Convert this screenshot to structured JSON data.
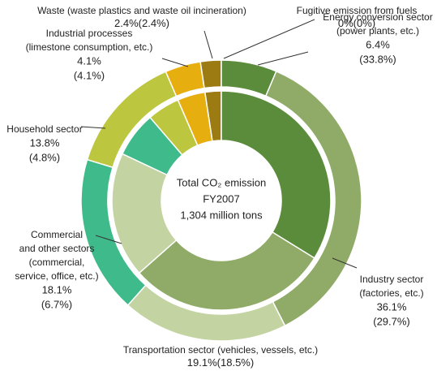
{
  "chart_data": {
    "type": "donut",
    "title": "Total CO₂ emission",
    "subtitle": "FY2007",
    "annotation": "1,304 million tons",
    "categories": [
      [
        "Energy conversion sector",
        "(power plants, etc.)"
      ],
      [
        "Industry sector",
        "(factories, etc.)"
      ],
      [
        "Transportation sector (vehicles, vessels, etc.)"
      ],
      [
        "Commercial",
        "and other sectors",
        "(commercial,",
        "service, office, etc.)"
      ],
      [
        "Household sector"
      ],
      [
        "Industrial processes",
        "(limestone consumption, etc.)"
      ],
      [
        "Waste (waste plastics and waste oil incineration)"
      ],
      [
        "Fugitive emission from fuels"
      ]
    ],
    "colors": [
      "#5b8c3b",
      "#8fab67",
      "#c4d3a2",
      "#3fba8b",
      "#bcc63f",
      "#e7ae10",
      "#9c7b12",
      "#6b5a10"
    ],
    "series": [
      {
        "values": [
          6.4,
          36.1,
          19.1,
          18.1,
          13.8,
          4.1,
          2.4,
          0
        ],
        "value_labels": [
          "6.4%",
          "36.1%",
          "19.1%",
          "18.1%",
          "13.8%",
          "4.1%",
          "2.4%",
          "0%"
        ]
      },
      {
        "values": [
          33.8,
          29.7,
          18.5,
          6.7,
          4.8,
          4.1,
          2.4,
          0
        ],
        "value_labels": [
          "(33.8%)",
          "(29.7%)",
          "(18.5%)",
          "(6.7%)",
          "(4.8%)",
          "(4.1%)",
          "(2.4%)",
          "(0%)"
        ]
      }
    ]
  }
}
